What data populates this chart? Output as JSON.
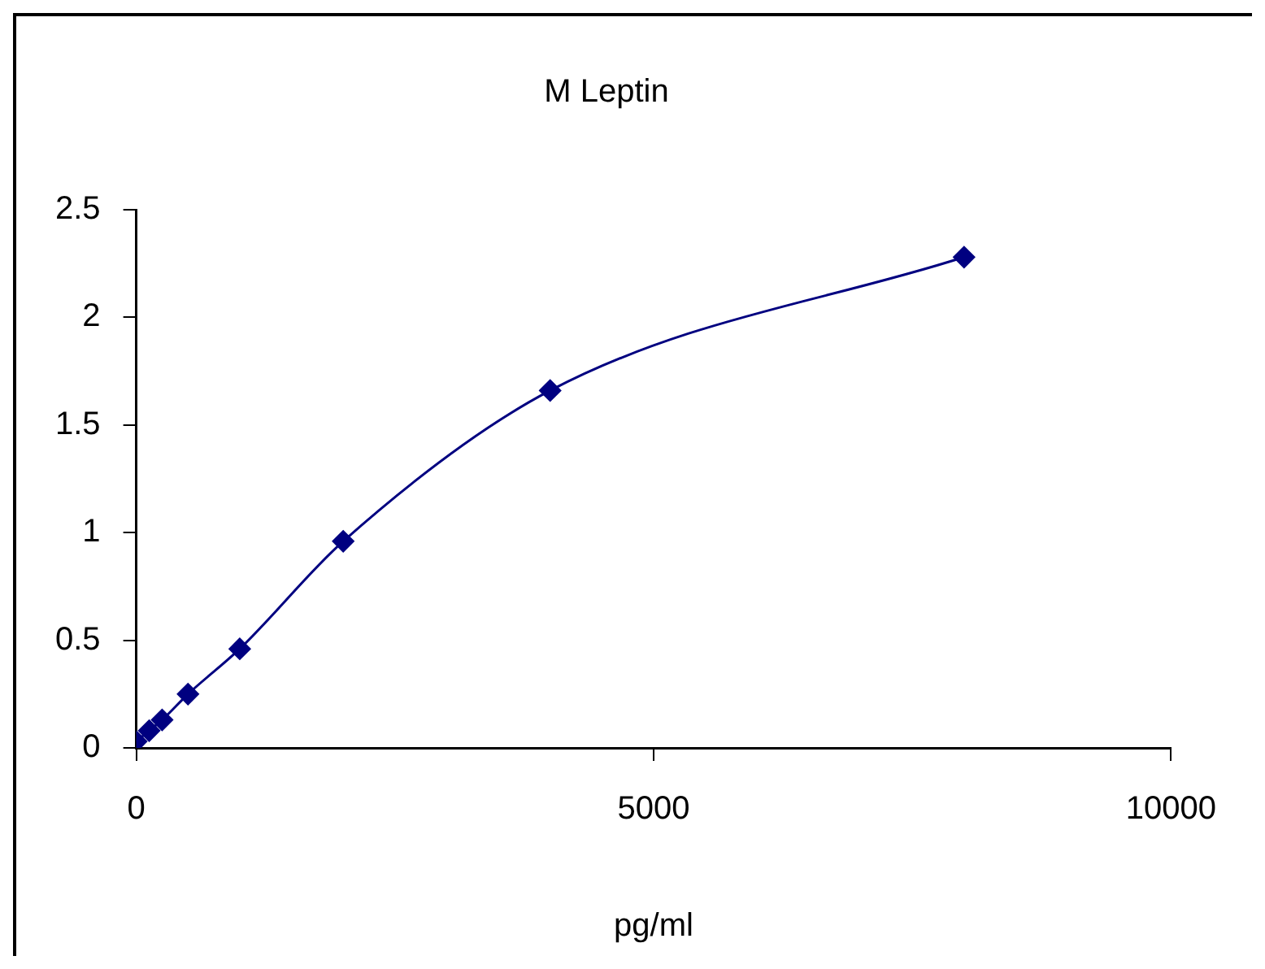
{
  "chart_data": {
    "type": "line",
    "title": "M Leptin",
    "xlabel": "pg/ml",
    "x": [
      0,
      125,
      250,
      500,
      1000,
      2000,
      4000,
      8000
    ],
    "series": [
      {
        "color": "#000080",
        "values": [
          0.03,
          0.08,
          0.13,
          0.25,
          0.46,
          0.96,
          1.66,
          2.28
        ]
      }
    ],
    "xlim": [
      0,
      10000
    ],
    "xticks": [
      0,
      5000,
      10000
    ],
    "ylim": [
      0,
      2.5
    ],
    "yticks": [
      0,
      0.5,
      1,
      1.5,
      2,
      2.5
    ],
    "grid": false,
    "legend": false,
    "marker": "diamond",
    "line_style": "solid"
  }
}
